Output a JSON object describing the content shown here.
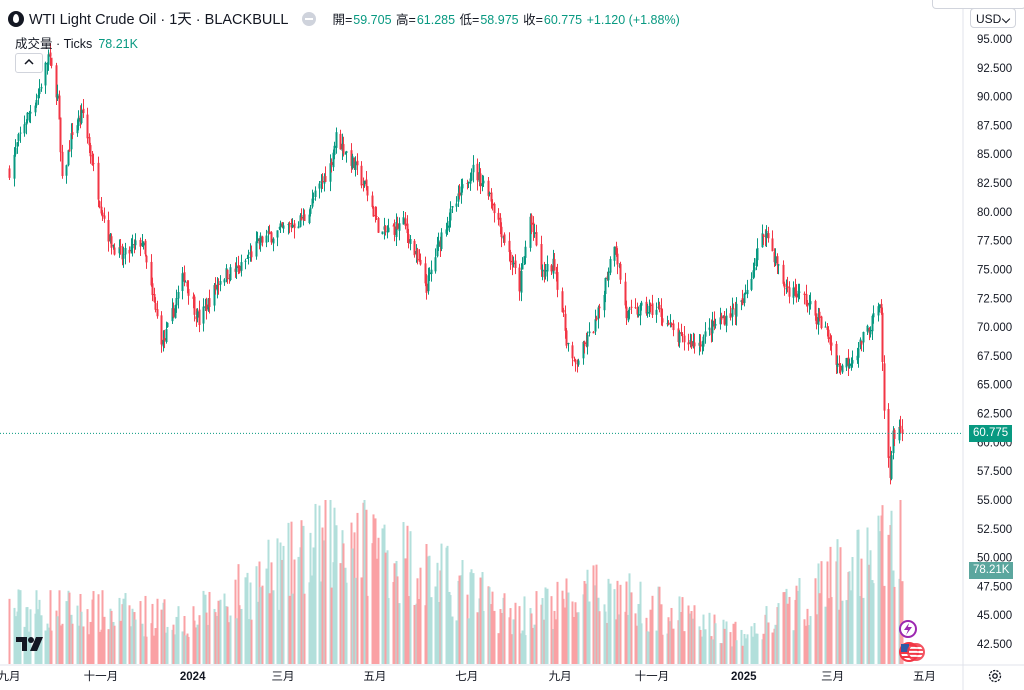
{
  "header": {
    "title": "WTI Light Crude Oil · 1天 · BLACKBULL",
    "ohlc": [
      {
        "label": "開=",
        "value": "59.705"
      },
      {
        "label": "高=",
        "value": "61.285"
      },
      {
        "label": "低=",
        "value": "58.975"
      },
      {
        "label": "收=",
        "value": "60.775"
      }
    ],
    "change": "+1.120 (+1.88%)"
  },
  "volume_legend": {
    "label": "成交量 · Ticks",
    "value": "78.21K"
  },
  "currency": "USD",
  "colors": {
    "up": "#089981",
    "down": "#f23645",
    "up_vol": "#b2dfdb",
    "down_vol": "#faa1a4",
    "axis_text": "#131722"
  },
  "icons": [
    "crude-oil-drop-icon",
    "minimize-icon",
    "chevron-up-icon",
    "tradingview-logo-icon",
    "settings-gear-icon",
    "lightning-event-icon",
    "us-flag-event-icon",
    "chevron-down-icon"
  ],
  "chart_data": {
    "type": "candlestick",
    "y_axis": {
      "ticks": [
        95,
        92.5,
        90,
        87.5,
        85,
        82.5,
        80,
        77.5,
        75,
        72.5,
        70,
        67.5,
        65,
        62.5,
        60,
        57.5,
        55,
        52.5,
        50,
        47.5,
        45,
        42.5
      ],
      "tick_labels": [
        "95.000",
        "92.500",
        "90.000",
        "87.500",
        "85.000",
        "82.500",
        "80.000",
        "77.500",
        "75.000",
        "72.500",
        "70.000",
        "67.500",
        "65.000",
        "62.500",
        "60.000",
        "57.500",
        "55.000",
        "52.500",
        "50.000",
        "47.500",
        "45.000",
        "42.500"
      ],
      "range": [
        41.9,
        97.1
      ]
    },
    "x_axis": {
      "tick_labels": [
        "九月",
        "十一月",
        "2024",
        "三月",
        "五月",
        "七月",
        "九月",
        "十一月",
        "2025",
        "三月",
        "五月"
      ],
      "tick_dates": [
        "2023-09-01",
        "2023-11-01",
        "2024-01-01",
        "2024-03-01",
        "2024-05-01",
        "2024-07-01",
        "2024-09-01",
        "2024-11-01",
        "2025-01-01",
        "2025-03-01",
        "2025-05-01"
      ],
      "range": [
        "2023-08-30",
        "2025-05-10"
      ]
    },
    "price_anchors": [
      {
        "date": "2023-09-01",
        "close": 83.6
      },
      {
        "date": "2023-09-10",
        "close": 87.5
      },
      {
        "date": "2023-09-20",
        "close": 90.2
      },
      {
        "date": "2023-09-27",
        "close": 93.5
      },
      {
        "date": "2023-10-03",
        "close": 90.0
      },
      {
        "date": "2023-10-06",
        "close": 82.5
      },
      {
        "date": "2023-10-13",
        "close": 87.0
      },
      {
        "date": "2023-10-20",
        "close": 88.5
      },
      {
        "date": "2023-10-31",
        "close": 81.0
      },
      {
        "date": "2023-11-07",
        "close": 77.5
      },
      {
        "date": "2023-11-15",
        "close": 76.0
      },
      {
        "date": "2023-11-28",
        "close": 77.5
      },
      {
        "date": "2023-12-05",
        "close": 72.5
      },
      {
        "date": "2023-12-12",
        "close": 68.5
      },
      {
        "date": "2023-12-26",
        "close": 74.5
      },
      {
        "date": "2024-01-05",
        "close": 70.5
      },
      {
        "date": "2024-01-20",
        "close": 74.5
      },
      {
        "date": "2024-02-01",
        "close": 75.0
      },
      {
        "date": "2024-02-15",
        "close": 77.5
      },
      {
        "date": "2024-03-01",
        "close": 78.5
      },
      {
        "date": "2024-03-15",
        "close": 79.5
      },
      {
        "date": "2024-04-01",
        "close": 84.0
      },
      {
        "date": "2024-04-05",
        "close": 86.5
      },
      {
        "date": "2024-04-15",
        "close": 84.5
      },
      {
        "date": "2024-04-25",
        "close": 82.0
      },
      {
        "date": "2024-05-05",
        "close": 78.0
      },
      {
        "date": "2024-05-20",
        "close": 79.0
      },
      {
        "date": "2024-06-04",
        "close": 73.5
      },
      {
        "date": "2024-06-15",
        "close": 78.5
      },
      {
        "date": "2024-06-25",
        "close": 81.0
      },
      {
        "date": "2024-07-04",
        "close": 83.8
      },
      {
        "date": "2024-07-15",
        "close": 82.0
      },
      {
        "date": "2024-07-25",
        "close": 78.0
      },
      {
        "date": "2024-08-05",
        "close": 73.5
      },
      {
        "date": "2024-08-12",
        "close": 79.5
      },
      {
        "date": "2024-08-20",
        "close": 74.5
      },
      {
        "date": "2024-08-28",
        "close": 75.5
      },
      {
        "date": "2024-09-05",
        "close": 69.0
      },
      {
        "date": "2024-09-10",
        "close": 66.5
      },
      {
        "date": "2024-09-25",
        "close": 70.5
      },
      {
        "date": "2024-10-07",
        "close": 77.5
      },
      {
        "date": "2024-10-15",
        "close": 71.0
      },
      {
        "date": "2024-10-25",
        "close": 71.5
      },
      {
        "date": "2024-11-05",
        "close": 71.5
      },
      {
        "date": "2024-11-18",
        "close": 69.0
      },
      {
        "date": "2024-12-01",
        "close": 68.5
      },
      {
        "date": "2024-12-15",
        "close": 70.5
      },
      {
        "date": "2024-12-31",
        "close": 72.0
      },
      {
        "date": "2025-01-10",
        "close": 76.5
      },
      {
        "date": "2025-01-15",
        "close": 78.5
      },
      {
        "date": "2025-01-28",
        "close": 73.5
      },
      {
        "date": "2025-02-10",
        "close": 72.5
      },
      {
        "date": "2025-02-25",
        "close": 69.5
      },
      {
        "date": "2025-03-05",
        "close": 66.5
      },
      {
        "date": "2025-03-15",
        "close": 67.5
      },
      {
        "date": "2025-03-31",
        "close": 71.5
      },
      {
        "date": "2025-04-02",
        "close": 71.2
      },
      {
        "date": "2025-04-04",
        "close": 62.5
      },
      {
        "date": "2025-04-08",
        "close": 57.5
      },
      {
        "date": "2025-04-10",
        "close": 60.5
      },
      {
        "date": "2025-04-14",
        "close": 61.5
      },
      {
        "date": "2025-04-16",
        "close": 60.775
      }
    ],
    "last_price": 60.775,
    "last_price_label": "60.775",
    "year_high": 94.0,
    "period_low": 54.7,
    "volume": {
      "last": 78.21,
      "last_label": "78.21K",
      "unit": "K",
      "typical": [
        {
          "date": "2023-10-01",
          "value": 45
        },
        {
          "date": "2024-01-01",
          "value": 38
        },
        {
          "date": "2024-04-15",
          "value": 110
        },
        {
          "date": "2024-08-01",
          "value": 40
        },
        {
          "date": "2024-10-01",
          "value": 60
        },
        {
          "date": "2025-01-01",
          "value": 22
        },
        {
          "date": "2025-04-07",
          "value": 100
        }
      ]
    }
  }
}
